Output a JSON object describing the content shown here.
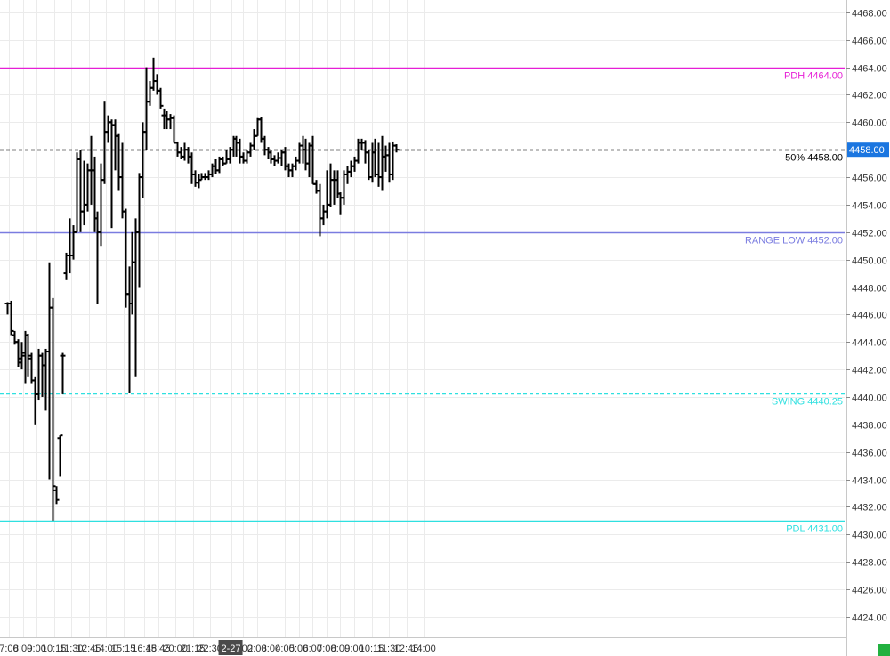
{
  "chart_data": {
    "type": "ohlc",
    "y_axis": {
      "side": "right",
      "min": 4422.5,
      "max": 4468.9,
      "ticks": [
        4424,
        4426,
        4428,
        4430,
        4432,
        4434,
        4436,
        4438,
        4440,
        4442,
        4444,
        4446,
        4448,
        4450,
        4452,
        4454,
        4456,
        4458,
        4460,
        4462,
        4464,
        4466,
        4468
      ],
      "tick_format": "fixed2"
    },
    "x_axis": {
      "labels": [
        {
          "text": "7:00",
          "i": 0.5
        },
        {
          "text": "8:00",
          "i": 4.5
        },
        {
          "text": "9:00",
          "i": 8.5
        },
        {
          "text": "10:15",
          "i": 13.5
        },
        {
          "text": "11:30",
          "i": 18.5
        },
        {
          "text": "12:45",
          "i": 23.5
        },
        {
          "text": "14:00",
          "i": 28.5
        },
        {
          "text": "15:15",
          "i": 33.5
        },
        {
          "text": "16:45",
          "i": 39.5
        },
        {
          "text": "18:45",
          "i": 43.5
        },
        {
          "text": "20:00",
          "i": 48.5
        },
        {
          "text": "21:15",
          "i": 53.5
        },
        {
          "text": "22:30",
          "i": 58.5
        },
        {
          "text": "1:00",
          "i": 68
        },
        {
          "text": "2:00",
          "i": 72
        },
        {
          "text": "3:00",
          "i": 76
        },
        {
          "text": "4:00",
          "i": 80
        },
        {
          "text": "5:00",
          "i": 84
        },
        {
          "text": "6:00",
          "i": 88
        },
        {
          "text": "7:00",
          "i": 92
        },
        {
          "text": "8:00",
          "i": 96
        },
        {
          "text": "9:00",
          "i": 100
        },
        {
          "text": "10:15",
          "i": 105
        },
        {
          "text": "11:30",
          "i": 110
        },
        {
          "text": "12:45",
          "i": 115
        },
        {
          "text": "14:00",
          "i": 120
        }
      ],
      "session_break": {
        "text": "2-27",
        "i": 64.5
      }
    },
    "current_price": {
      "label": "4458.00",
      "value": 4458.0,
      "color": "#1b76e0"
    },
    "levels": [
      {
        "label": "PDH  4464.00",
        "value": 4464.0,
        "color": "#e61fd6",
        "style": "solid"
      },
      {
        "label": "50%  4458.00",
        "value": 4458.0,
        "color": "#000000",
        "style": "dashed"
      },
      {
        "label": "RANGE LOW  4452.00",
        "value": 4452.0,
        "color": "#7a7ce0",
        "style": "solid"
      },
      {
        "label": "SWING  4440.25",
        "value": 4440.25,
        "color": "#2fe0e0",
        "style": "dashed"
      },
      {
        "label": "PDL  4431.00",
        "value": 4431.0,
        "color": "#2fe0e0",
        "style": "solid"
      }
    ],
    "bars": [
      [
        4446.8,
        4446.9,
        4446.0,
        4446.8
      ],
      [
        4446.8,
        4447.0,
        4444.5,
        4444.8
      ],
      [
        4444.5,
        4444.8,
        4443.8,
        4444.0
      ],
      [
        4444.0,
        4444.2,
        4442.2,
        4442.5
      ],
      [
        4442.8,
        4444.0,
        4442.0,
        4443.2
      ],
      [
        4443.0,
        4444.8,
        4441.0,
        4444.5
      ],
      [
        4444.5,
        4444.6,
        4441.5,
        4442.8
      ],
      [
        4443.0,
        4443.2,
        4441.0,
        4441.2
      ],
      [
        4441.2,
        4441.5,
        4438.0,
        4440.2
      ],
      [
        4440.2,
        4443.5,
        4439.8,
        4443.0
      ],
      [
        4443.0,
        4443.2,
        4440.0,
        4442.3
      ],
      [
        4442.3,
        4443.5,
        4439.0,
        4443.3
      ],
      [
        4443.3,
        4449.8,
        4434.0,
        4446.5
      ],
      [
        4446.5,
        4447.2,
        4431.0,
        4433.5
      ],
      [
        4433.2,
        4433.5,
        4432.2,
        4432.5
      ],
      [
        4437.0,
        4437.2,
        4434.2,
        4437.2
      ],
      [
        4443.0,
        4443.2,
        4440.2,
        4443.0
      ],
      [
        4449.0,
        4450.5,
        4448.5,
        4450.3
      ],
      [
        4450.3,
        4453.0,
        4449.0,
        4450.3
      ],
      [
        4450.3,
        4452.5,
        4450.0,
        4452.0
      ],
      [
        4452.0,
        4457.8,
        4452.0,
        4457.3
      ],
      [
        4457.3,
        4458.0,
        4452.0,
        4453.5
      ],
      [
        4453.5,
        4457.2,
        4452.5,
        4454.0
      ],
      [
        4454.0,
        4457.0,
        4453.5,
        4456.5
      ],
      [
        4456.5,
        4459.0,
        4454.0,
        4456.5
      ],
      [
        4456.5,
        4457.5,
        4452.0,
        4453.0
      ],
      [
        4453.0,
        4453.5,
        4446.8,
        4452.0
      ],
      [
        4452.0,
        4457.0,
        4451.0,
        4455.8
      ],
      [
        4455.8,
        4461.5,
        4455.5,
        4459.3
      ],
      [
        4459.3,
        4460.5,
        4458.5,
        4460.0
      ],
      [
        4460.0,
        4460.2,
        4452.3,
        4459.8
      ],
      [
        4459.8,
        4460.2,
        4456.5,
        4459.0
      ],
      [
        4459.0,
        4459.2,
        4455.0,
        4456.0
      ],
      [
        4456.0,
        4458.5,
        4453.0,
        4453.5
      ],
      [
        4453.5,
        4453.7,
        4446.5,
        4447.5
      ],
      [
        4447.5,
        4449.5,
        4440.3,
        4446.8
      ],
      [
        4446.8,
        4452.0,
        4446.0,
        4449.8
      ],
      [
        4449.8,
        4453.0,
        4441.5,
        4452.0
      ],
      [
        4452.0,
        4456.3,
        4448.0,
        4456.0
      ],
      [
        4456.0,
        4460.0,
        4454.5,
        4459.3
      ],
      [
        4459.3,
        4464.0,
        4458.0,
        4461.5
      ],
      [
        4461.5,
        4463.0,
        4461.2,
        4462.5
      ],
      [
        4462.5,
        4464.7,
        4462.3,
        4463.0
      ],
      [
        4463.0,
        4463.5,
        4462.0,
        4462.3
      ],
      [
        4462.3,
        4462.5,
        4461.0,
        4461.2
      ],
      [
        4460.5,
        4461.0,
        4459.5,
        4460.5
      ],
      [
        4460.5,
        4460.8,
        4459.5,
        4460.2
      ],
      [
        4460.2,
        4460.6,
        4459.5,
        4460.3
      ],
      [
        4460.3,
        4460.5,
        4458.5,
        4458.5
      ],
      [
        4458.5,
        4458.6,
        4457.5,
        4457.8
      ],
      [
        4457.8,
        4458.2,
        4457.3,
        4457.5
      ],
      [
        4457.5,
        4458.5,
        4457.2,
        4458.0
      ],
      [
        4458.0,
        4458.2,
        4457.0,
        4457.5
      ],
      [
        4457.5,
        4457.8,
        4455.5,
        4456.2
      ],
      [
        4456.2,
        4456.5,
        4455.3,
        4455.6
      ],
      [
        4455.6,
        4456.2,
        4455.2,
        4455.8
      ],
      [
        4455.8,
        4456.3,
        4455.8,
        4456.0
      ],
      [
        4456.0,
        4456.3,
        4455.8,
        4456.0
      ],
      [
        4456.0,
        4456.5,
        4455.8,
        4456.2
      ],
      [
        4456.2,
        4457.0,
        4456.0,
        4456.8
      ],
      [
        4456.8,
        4457.3,
        4456.2,
        4456.5
      ],
      [
        4456.5,
        4457.5,
        4456.3,
        4457.3
      ],
      [
        4457.3,
        4457.5,
        4456.8,
        4457.0
      ],
      [
        4457.0,
        4458.0,
        4457.0,
        4457.3
      ],
      [
        4457.3,
        4458.2,
        4457.0,
        4458.0
      ],
      [
        4458.0,
        4459.0,
        4457.5,
        4458.8
      ],
      [
        4458.8,
        4459.0,
        4457.5,
        4458.5
      ],
      [
        4458.5,
        4458.8,
        4457.0,
        4457.5
      ],
      [
        4457.5,
        4457.8,
        4457.0,
        4457.2
      ],
      [
        4457.2,
        4458.0,
        4457.0,
        4457.8
      ],
      [
        4457.8,
        4458.5,
        4457.5,
        4458.3
      ],
      [
        4458.3,
        4459.5,
        4458.0,
        4459.0
      ],
      [
        4459.0,
        4460.3,
        4459.0,
        4460.2
      ],
      [
        4460.2,
        4460.4,
        4458.5,
        4458.8
      ],
      [
        4458.8,
        4459.0,
        4457.6,
        4458.0
      ],
      [
        4458.0,
        4458.2,
        4457.3,
        4457.8
      ],
      [
        4457.8,
        4458.0,
        4457.0,
        4457.3
      ],
      [
        4457.3,
        4457.6,
        4456.8,
        4457.2
      ],
      [
        4457.2,
        4457.8,
        4457.0,
        4457.4
      ],
      [
        4457.4,
        4458.0,
        4456.8,
        4457.8
      ],
      [
        4457.8,
        4458.2,
        4456.5,
        4456.8
      ],
      [
        4456.8,
        4457.0,
        4456.0,
        4456.5
      ],
      [
        4456.5,
        4457.0,
        4456.0,
        4456.8
      ],
      [
        4456.8,
        4457.5,
        4456.5,
        4457.2
      ],
      [
        4457.2,
        4458.5,
        4457.0,
        4458.3
      ],
      [
        4458.3,
        4459.0,
        4457.0,
        4458.0
      ],
      [
        4458.0,
        4458.8,
        4456.5,
        4457.0
      ],
      [
        4457.0,
        4458.5,
        4456.0,
        4458.3
      ],
      [
        4458.3,
        4459.0,
        4455.5,
        4455.5
      ],
      [
        4455.5,
        4455.8,
        4454.8,
        4455.0
      ],
      [
        4455.0,
        4455.5,
        4451.7,
        4453.0
      ],
      [
        4453.0,
        4454.0,
        4452.5,
        4453.5
      ],
      [
        4453.5,
        4456.5,
        4453.0,
        4454.0
      ],
      [
        4454.0,
        4457.0,
        4453.8,
        4455.8
      ],
      [
        4455.8,
        4456.5,
        4454.0,
        4455.8
      ],
      [
        4455.8,
        4456.5,
        4454.5,
        4454.8
      ],
      [
        4454.8,
        4454.9,
        4453.3,
        4454.5
      ],
      [
        4454.5,
        4456.5,
        4454.0,
        4456.2
      ],
      [
        4456.2,
        4456.8,
        4455.5,
        4456.4
      ],
      [
        4456.4,
        4457.2,
        4456.0,
        4456.8
      ],
      [
        4456.8,
        4457.5,
        4456.4,
        4457.2
      ],
      [
        4457.2,
        4458.8,
        4457.0,
        4458.5
      ],
      [
        4458.5,
        4458.8,
        4458.0,
        4458.5
      ],
      [
        4458.5,
        4458.7,
        4457.0,
        4457.8
      ],
      [
        4457.8,
        4458.0,
        4455.8,
        4456.0
      ],
      [
        4456.0,
        4458.5,
        4455.6,
        4457.8
      ],
      [
        4457.8,
        4458.8,
        4456.0,
        4456.2
      ],
      [
        4456.2,
        4458.5,
        4455.3,
        4456.0
      ],
      [
        4456.0,
        4459.0,
        4455.0,
        4457.5
      ],
      [
        4457.5,
        4458.3,
        4456.4,
        4457.6
      ],
      [
        4457.6,
        4458.5,
        4455.6,
        4456.2
      ],
      [
        4456.2,
        4458.6,
        4455.8,
        4458.3
      ],
      [
        4458.3,
        4458.4,
        4457.8,
        4458.0
      ]
    ]
  }
}
